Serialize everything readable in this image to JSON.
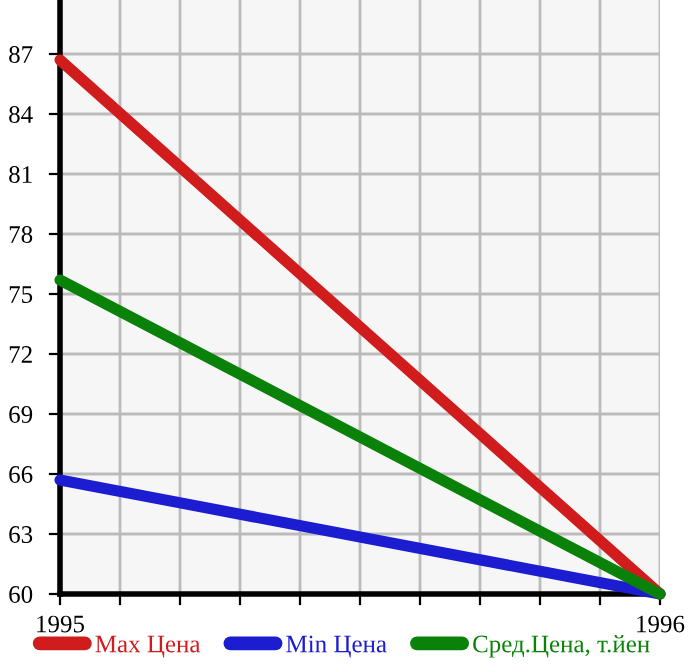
{
  "chart_data": {
    "type": "line",
    "x": [
      1995,
      1996
    ],
    "series": [
      {
        "name": "Max Цена",
        "color": "#d01c1c",
        "values": [
          86.7,
          60
        ]
      },
      {
        "name": "Min Цена",
        "color": "#1c1cd0",
        "values": [
          65.7,
          60
        ]
      },
      {
        "name": "Сред.Цена, т.йен",
        "color": "#0a820a",
        "values": [
          75.7,
          60
        ]
      }
    ],
    "xlim": [
      1995,
      1996
    ],
    "xticks": [
      1995,
      {
        "value": 1995.1,
        "label": null
      },
      {
        "value": 1995.2,
        "label": null
      },
      {
        "value": 1995.3,
        "label": null
      },
      {
        "value": 1995.4,
        "label": null
      },
      {
        "value": 1995.5,
        "label": null
      },
      {
        "value": 1995.6,
        "label": null
      },
      {
        "value": 1995.7,
        "label": null
      },
      {
        "value": 1995.8,
        "label": null
      },
      {
        "value": 1995.9,
        "label": null
      },
      1996
    ],
    "ylim": [
      60,
      89.7
    ],
    "yticks": [
      60,
      63,
      66,
      69,
      72,
      75,
      78,
      81,
      84,
      87
    ],
    "grid": true,
    "legend": "bottom",
    "marker": "none",
    "line_style": "solid"
  }
}
